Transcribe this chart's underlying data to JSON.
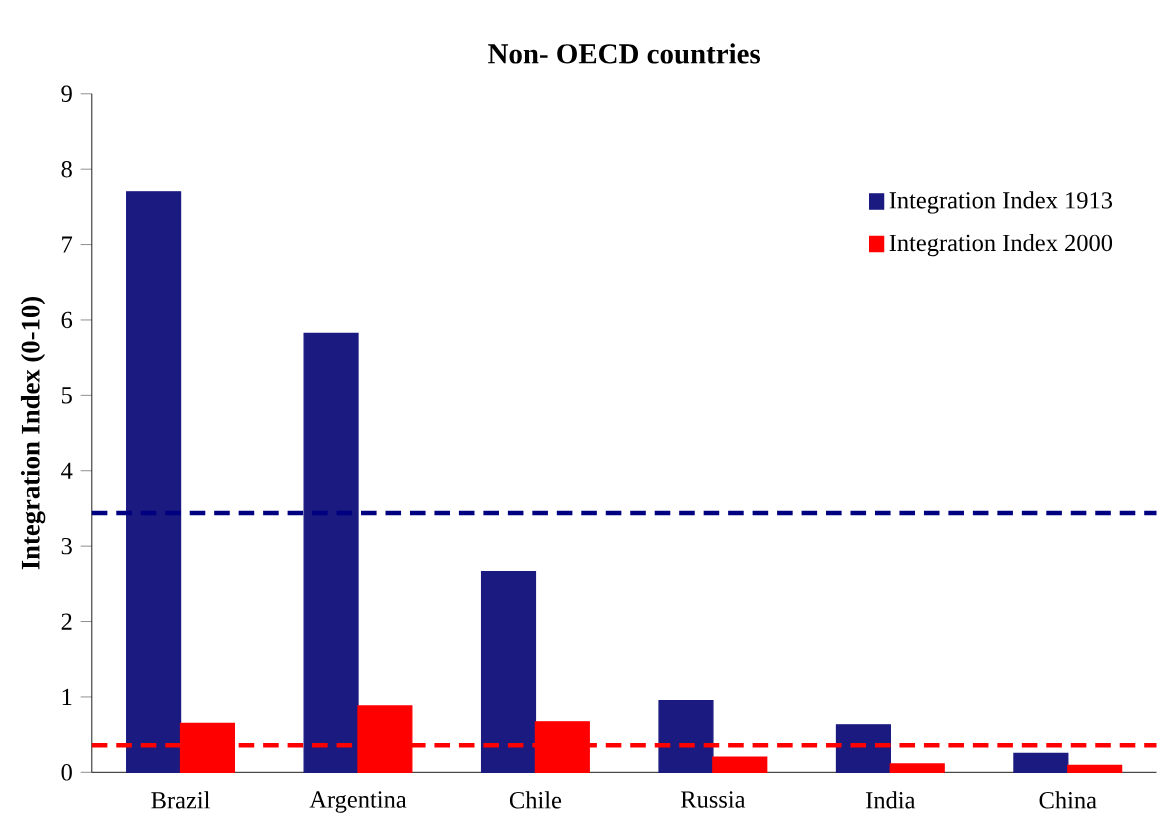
{
  "chart_data": {
    "type": "bar",
    "title": "Non- OECD countries",
    "ylabel": "Integration Index (0-10)",
    "categories": [
      "Brazil",
      "Argentina",
      "Chile",
      "Russia",
      "India",
      "China"
    ],
    "series": [
      {
        "name": "Integration Index 1913",
        "color": "#1a1a80",
        "values": [
          7.7,
          5.82,
          2.66,
          0.95,
          0.63,
          0.25
        ]
      },
      {
        "name": "Integration Index 2000",
        "color": "#ff0000",
        "values": [
          0.65,
          0.88,
          0.67,
          0.2,
          0.11,
          0.09
        ]
      }
    ],
    "ylim": [
      0,
      9
    ],
    "yticks": [
      0,
      1,
      2,
      3,
      4,
      5,
      6,
      7,
      8,
      9
    ],
    "ref_lines": [
      {
        "axis": "y",
        "value": 3.44,
        "color": "#000080",
        "line_style": "dashed"
      },
      {
        "axis": "y",
        "value": 0.36,
        "color": "#ff0000",
        "line_style": "dashed"
      }
    ],
    "grid": false,
    "legend": "top right"
  }
}
